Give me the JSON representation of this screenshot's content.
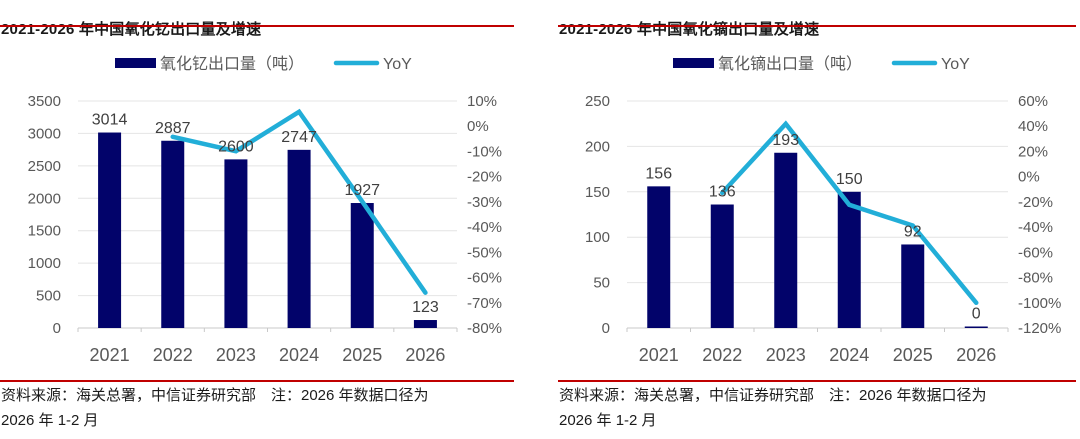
{
  "colors": {
    "bar_navy": "#02036a",
    "line_cyan": "#22aed8",
    "accent_red": "#c00000",
    "axis_text": "#595959",
    "value_text": "#3f3f3f",
    "grid": "#e4e4e4",
    "axis_line": "#c9c9c9",
    "title_text": "#1a1a1a",
    "footer_text": "#1b1b1b"
  },
  "chart_data": [
    {
      "type": "bar+line",
      "title": "2021-2026 年中国氧化钇出口量及增速",
      "categories": [
        "2021",
        "2022",
        "2023",
        "2024",
        "2025",
        "2026"
      ],
      "series": [
        {
          "name": "氧化钇出口量（吨）",
          "type": "bar",
          "axis": "left",
          "values": [
            3014,
            2887,
            2600,
            2747,
            1927,
            123
          ],
          "labels": [
            "3014",
            "2887",
            "2600",
            "2747",
            "1927",
            "123"
          ]
        },
        {
          "name": "YoY",
          "type": "line",
          "axis": "right",
          "unit": "%",
          "values": [
            null,
            -4.2,
            -9.9,
            5.7,
            -29.9,
            -66
          ]
        }
      ],
      "left_axis": {
        "min": 0,
        "max": 3500,
        "tick_labels": [
          "0",
          "500",
          "1000",
          "1500",
          "2000",
          "2500",
          "3000",
          "3500"
        ]
      },
      "right_axis": {
        "min": -80,
        "max": 10,
        "tick_labels": [
          "10%",
          "0%",
          "-10%",
          "-20%",
          "-30%",
          "-40%",
          "-50%",
          "-60%",
          "-70%",
          "-80%"
        ]
      },
      "grid": true,
      "legend_position": "top"
    },
    {
      "type": "bar+line",
      "title": "2021-2026 年中国氧化镝出口量及增速",
      "categories": [
        "2021",
        "2022",
        "2023",
        "2024",
        "2025",
        "2026"
      ],
      "series": [
        {
          "name": "氧化镝出口量（吨）",
          "type": "bar",
          "axis": "left",
          "values": [
            156,
            136,
            193,
            150,
            92,
            0
          ],
          "labels": [
            "156",
            "136",
            "193",
            "150",
            "92",
            "0"
          ]
        },
        {
          "name": "YoY",
          "type": "line",
          "axis": "right",
          "unit": "%",
          "values": [
            null,
            -12.8,
            41.9,
            -22.3,
            -38.7,
            -100
          ]
        }
      ],
      "left_axis": {
        "min": 0,
        "max": 250,
        "tick_labels": [
          "0",
          "50",
          "100",
          "150",
          "200",
          "250"
        ]
      },
      "right_axis": {
        "min": -120,
        "max": 60,
        "tick_labels": [
          "60%",
          "40%",
          "20%",
          "0%",
          "-20%",
          "-40%",
          "-60%",
          "-80%",
          "-100%",
          "-120%"
        ]
      },
      "grid": true,
      "legend_position": "top"
    }
  ],
  "footers": [
    {
      "line1": "资料来源：海关总署，中信证券研究部　注：2026 年数据口径为",
      "line2": "2026 年 1-2 月"
    },
    {
      "line1": "资料来源：海关总署，中信证券研究部　注：2026 年数据口径为",
      "line2": "2026 年 1-2 月"
    }
  ]
}
